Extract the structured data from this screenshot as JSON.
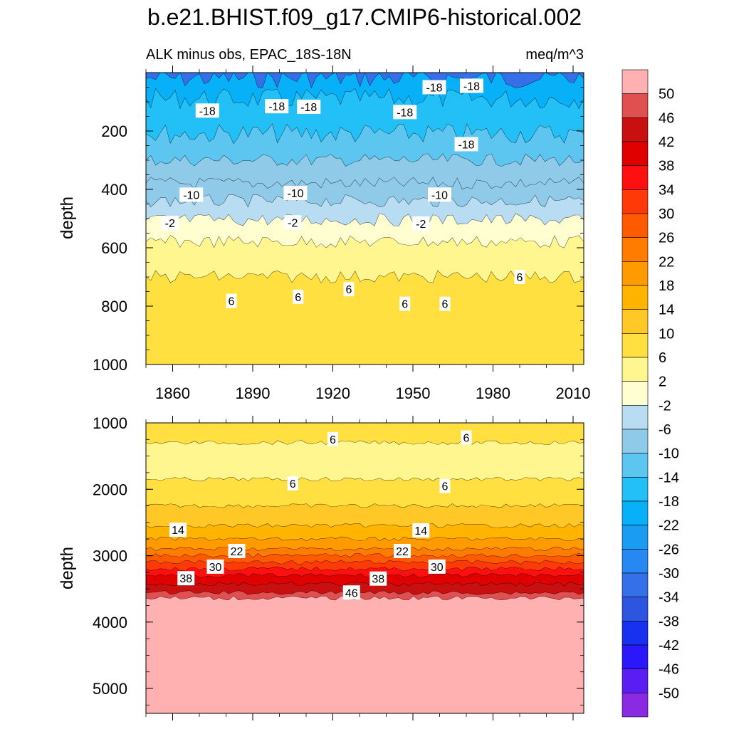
{
  "title": "b.e21.BHIST.f09_g17.CMIP6-historical.002",
  "colors": {
    "levels": [
      "#8a2be2",
      "#5a1ef2",
      "#2a18fa",
      "#1830f0",
      "#2e55e0",
      "#3670e8",
      "#2688f0",
      "#1a9cf2",
      "#08b0f8",
      "#22c0f6",
      "#5cc5f0",
      "#8fcae8",
      "#b8dcf2",
      "#fffed0",
      "#fff690",
      "#ffe040",
      "#ffc826",
      "#ffb400",
      "#ff9a00",
      "#ff7c00",
      "#ff5a00",
      "#ff3a08",
      "#ff1010",
      "#e00000",
      "#c81010",
      "#e05050",
      "#ffb0b0"
    ]
  },
  "colorbar": {
    "labels": [
      "-50",
      "-46",
      "-42",
      "-38",
      "-34",
      "-30",
      "-26",
      "-22",
      "-18",
      "-14",
      "-10",
      "-6",
      "-2",
      "2",
      "6",
      "10",
      "14",
      "18",
      "22",
      "26",
      "30",
      "34",
      "38",
      "42",
      "46",
      "50"
    ]
  },
  "chart_data": [
    {
      "type": "heatmap",
      "subtitle_left": "ALK minus obs, EPAC_18S-18N",
      "subtitle_right": "meq/m^3",
      "ylabel": "depth",
      "xlabel": "",
      "xlim": [
        1850,
        2014
      ],
      "ylim": [
        0,
        1000
      ],
      "xticks": [
        "1860",
        "1890",
        "1920",
        "1950",
        "1980",
        "2010"
      ],
      "xtick_values": [
        1860,
        1890,
        1920,
        1950,
        1980,
        2010
      ],
      "yticks": [
        "200",
        "400",
        "600",
        "800",
        "1000"
      ],
      "ytick_values": [
        200,
        400,
        600,
        800,
        1000
      ],
      "layers": [
        {
          "top": 0,
          "bottom": 20,
          "value": -34
        },
        {
          "top": 20,
          "bottom": 90,
          "value": -22
        },
        {
          "top": 90,
          "bottom": 210,
          "value": -18
        },
        {
          "top": 210,
          "bottom": 300,
          "value": -14
        },
        {
          "top": 300,
          "bottom": 380,
          "value": -10
        },
        {
          "top": 380,
          "bottom": 440,
          "value": -10
        },
        {
          "top": 440,
          "bottom": 505,
          "value": -6
        },
        {
          "top": 505,
          "bottom": 580,
          "value": 0
        },
        {
          "top": 580,
          "bottom": 700,
          "value": 4
        },
        {
          "top": 700,
          "bottom": 1000,
          "value": 8
        }
      ],
      "contour_labels": [
        {
          "text": "-18",
          "x": 1873,
          "y": 130
        },
        {
          "text": "-18",
          "x": 1899,
          "y": 115
        },
        {
          "text": "-18",
          "x": 1911,
          "y": 117
        },
        {
          "text": "-18",
          "x": 1947,
          "y": 135
        },
        {
          "text": "-18",
          "x": 1958,
          "y": 50
        },
        {
          "text": "-18",
          "x": 1972,
          "y": 45
        },
        {
          "text": "-18",
          "x": 1970,
          "y": 245
        },
        {
          "text": "-10",
          "x": 1867,
          "y": 418
        },
        {
          "text": "-10",
          "x": 1906,
          "y": 412
        },
        {
          "text": "-10",
          "x": 1960,
          "y": 418
        },
        {
          "text": "-2",
          "x": 1859,
          "y": 515
        },
        {
          "text": "-2",
          "x": 1905,
          "y": 513
        },
        {
          "text": "-2",
          "x": 1953,
          "y": 517
        },
        {
          "text": "6",
          "x": 1882,
          "y": 782
        },
        {
          "text": "6",
          "x": 1907,
          "y": 768
        },
        {
          "text": "6",
          "x": 1926,
          "y": 742
        },
        {
          "text": "6",
          "x": 1947,
          "y": 792
        },
        {
          "text": "6",
          "x": 1962,
          "y": 792
        },
        {
          "text": "6",
          "x": 1990,
          "y": 700
        }
      ]
    },
    {
      "type": "heatmap",
      "ylabel": "depth",
      "xlim": [
        1850,
        2014
      ],
      "ylim": [
        1000,
        5375
      ],
      "yticks": [
        "1000",
        "2000",
        "3000",
        "4000",
        "5000"
      ],
      "ytick_values": [
        1000,
        2000,
        3000,
        4000,
        5000
      ],
      "layers": [
        {
          "top": 1000,
          "bottom": 1300,
          "value": 8
        },
        {
          "top": 1300,
          "bottom": 1850,
          "value": 4
        },
        {
          "top": 1850,
          "bottom": 2250,
          "value": 8
        },
        {
          "top": 2250,
          "bottom": 2550,
          "value": 12
        },
        {
          "top": 2550,
          "bottom": 2750,
          "value": 16
        },
        {
          "top": 2750,
          "bottom": 2900,
          "value": 20
        },
        {
          "top": 2900,
          "bottom": 3000,
          "value": 24
        },
        {
          "top": 3000,
          "bottom": 3100,
          "value": 28
        },
        {
          "top": 3100,
          "bottom": 3200,
          "value": 32
        },
        {
          "top": 3200,
          "bottom": 3300,
          "value": 36
        },
        {
          "top": 3300,
          "bottom": 3430,
          "value": 40
        },
        {
          "top": 3430,
          "bottom": 3560,
          "value": 44
        },
        {
          "top": 3560,
          "bottom": 3640,
          "value": 48
        },
        {
          "top": 3640,
          "bottom": 5375,
          "value": 52
        }
      ],
      "contour_labels": [
        {
          "text": "6",
          "x": 1920,
          "y": 1245
        },
        {
          "text": "6",
          "x": 1970,
          "y": 1220
        },
        {
          "text": "6",
          "x": 1905,
          "y": 1910
        },
        {
          "text": "6",
          "x": 1962,
          "y": 1950
        },
        {
          "text": "14",
          "x": 1862,
          "y": 2610
        },
        {
          "text": "14",
          "x": 1953,
          "y": 2620
        },
        {
          "text": "22",
          "x": 1884,
          "y": 2930
        },
        {
          "text": "22",
          "x": 1946,
          "y": 2930
        },
        {
          "text": "30",
          "x": 1876,
          "y": 3165
        },
        {
          "text": "30",
          "x": 1959,
          "y": 3165
        },
        {
          "text": "38",
          "x": 1865,
          "y": 3340
        },
        {
          "text": "38",
          "x": 1937,
          "y": 3345
        },
        {
          "text": "46",
          "x": 1927,
          "y": 3555
        }
      ]
    }
  ]
}
